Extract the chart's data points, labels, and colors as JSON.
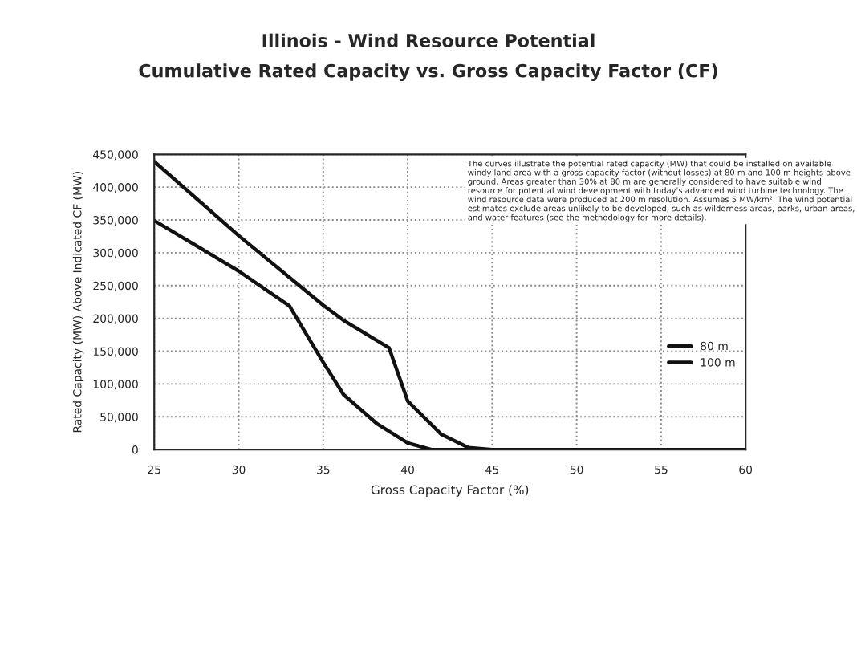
{
  "chart_data": {
    "type": "line",
    "title": "Illinois - Wind Resource Potential",
    "subtitle": "Cumulative Rated Capacity vs. Gross Capacity Factor (CF)",
    "xlabel": "Gross Capacity Factor (%)",
    "ylabel": "Rated Capacity (MW) Above Indicated CF (MW)",
    "series": [
      {
        "name": "80 m",
        "color": "#111111",
        "x": [
          25,
          30,
          33,
          35,
          36.2,
          38.2,
          40,
          41.4,
          45,
          50,
          55,
          60
        ],
        "values": [
          349000,
          272000,
          219000,
          133000,
          84000,
          39000,
          10000,
          0,
          0,
          0,
          0,
          0
        ]
      },
      {
        "name": "100 m",
        "color": "#111111",
        "x": [
          25,
          30,
          35,
          36.2,
          38.9,
          40,
          42,
          43.6,
          45,
          50,
          55,
          60
        ],
        "values": [
          439000,
          326000,
          220000,
          197000,
          155000,
          74000,
          23000,
          3000,
          0,
          0,
          0,
          0
        ]
      }
    ],
    "xlim": [
      25,
      60
    ],
    "xticks": [
      25,
      30,
      35,
      40,
      45,
      50,
      55,
      60
    ],
    "ylim": [
      0,
      450000
    ],
    "yticks": [
      {
        "value": 0,
        "label": "0"
      },
      {
        "value": 50000,
        "label": "50,000"
      },
      {
        "value": 100000,
        "label": "100,000"
      },
      {
        "value": 150000,
        "label": "150,000"
      },
      {
        "value": 200000,
        "label": "200,000"
      },
      {
        "value": 250000,
        "label": "250,000"
      },
      {
        "value": 300000,
        "label": "300,000"
      },
      {
        "value": 350000,
        "label": "350,000"
      },
      {
        "value": 400000,
        "label": "400,000"
      },
      {
        "value": 450000,
        "label": "450,000"
      }
    ],
    "grid": true,
    "legend": "right",
    "marker": "none",
    "line_style": "solid",
    "annotations": [
      "The curves illustrate the potential rated capacity (MW) that could be installed on available windy land area with a gross capacity factor (without losses) at 80 m and 100 m heights above ground. Areas greater than 30% at 80 m are generally considered to have suitable wind resource for potential wind development with today's advanced wind turbine technology. The wind resource data were produced at 200 m resolution. Assumes 5 MW/km². The wind potential estimates exclude areas unlikely to be developed, such as wilderness areas, parks, urban areas, and water features (see the methodology for more details)."
    ]
  }
}
